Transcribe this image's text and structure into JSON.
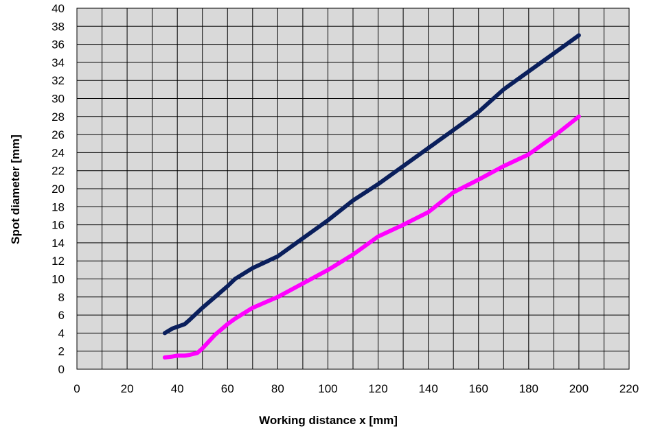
{
  "chart_data": {
    "type": "line",
    "title": "",
    "xlabel": "Working distance x  [mm]",
    "ylabel": "Spot diameter   [mm]",
    "xlim": [
      0,
      220
    ],
    "ylim": [
      0,
      40
    ],
    "x_ticks": [
      "0",
      "20",
      "40",
      "60",
      "80",
      "100",
      "120",
      "140",
      "160",
      "180",
      "200",
      "220"
    ],
    "y_ticks": [
      "0",
      "2",
      "4",
      "6",
      "8",
      "10",
      "12",
      "14",
      "16",
      "18",
      "20",
      "22",
      "24",
      "26",
      "28",
      "30",
      "32",
      "34",
      "36",
      "38",
      "40"
    ],
    "grid": true,
    "legend": "none",
    "plot_background": "#d9d9d9",
    "series": [
      {
        "color": "#0a1f5c",
        "points": [
          [
            35,
            4.0
          ],
          [
            38,
            4.5
          ],
          [
            41,
            4.8
          ],
          [
            43,
            5.0
          ],
          [
            45,
            5.5
          ],
          [
            50,
            6.8
          ],
          [
            55,
            8.0
          ],
          [
            60,
            9.2
          ],
          [
            63,
            10.0
          ],
          [
            70,
            11.2
          ],
          [
            80,
            12.5
          ],
          [
            90,
            14.5
          ],
          [
            100,
            16.5
          ],
          [
            110,
            18.7
          ],
          [
            120,
            20.5
          ],
          [
            130,
            22.5
          ],
          [
            140,
            24.5
          ],
          [
            150,
            26.5
          ],
          [
            160,
            28.5
          ],
          [
            170,
            31.0
          ],
          [
            180,
            33.0
          ],
          [
            190,
            35.0
          ],
          [
            200,
            37.0
          ]
        ]
      },
      {
        "color": "#ff00ff",
        "points": [
          [
            35,
            1.3
          ],
          [
            38,
            1.4
          ],
          [
            40,
            1.5
          ],
          [
            43,
            1.5
          ],
          [
            45,
            1.6
          ],
          [
            48,
            1.8
          ],
          [
            50,
            2.3
          ],
          [
            55,
            3.8
          ],
          [
            60,
            5.0
          ],
          [
            63,
            5.6
          ],
          [
            70,
            6.8
          ],
          [
            80,
            8.0
          ],
          [
            90,
            9.5
          ],
          [
            100,
            11.0
          ],
          [
            110,
            12.7
          ],
          [
            120,
            14.7
          ],
          [
            130,
            16.0
          ],
          [
            140,
            17.4
          ],
          [
            150,
            19.6
          ],
          [
            160,
            21.0
          ],
          [
            170,
            22.5
          ],
          [
            180,
            23.8
          ],
          [
            190,
            25.8
          ],
          [
            200,
            28.0
          ]
        ]
      }
    ]
  }
}
